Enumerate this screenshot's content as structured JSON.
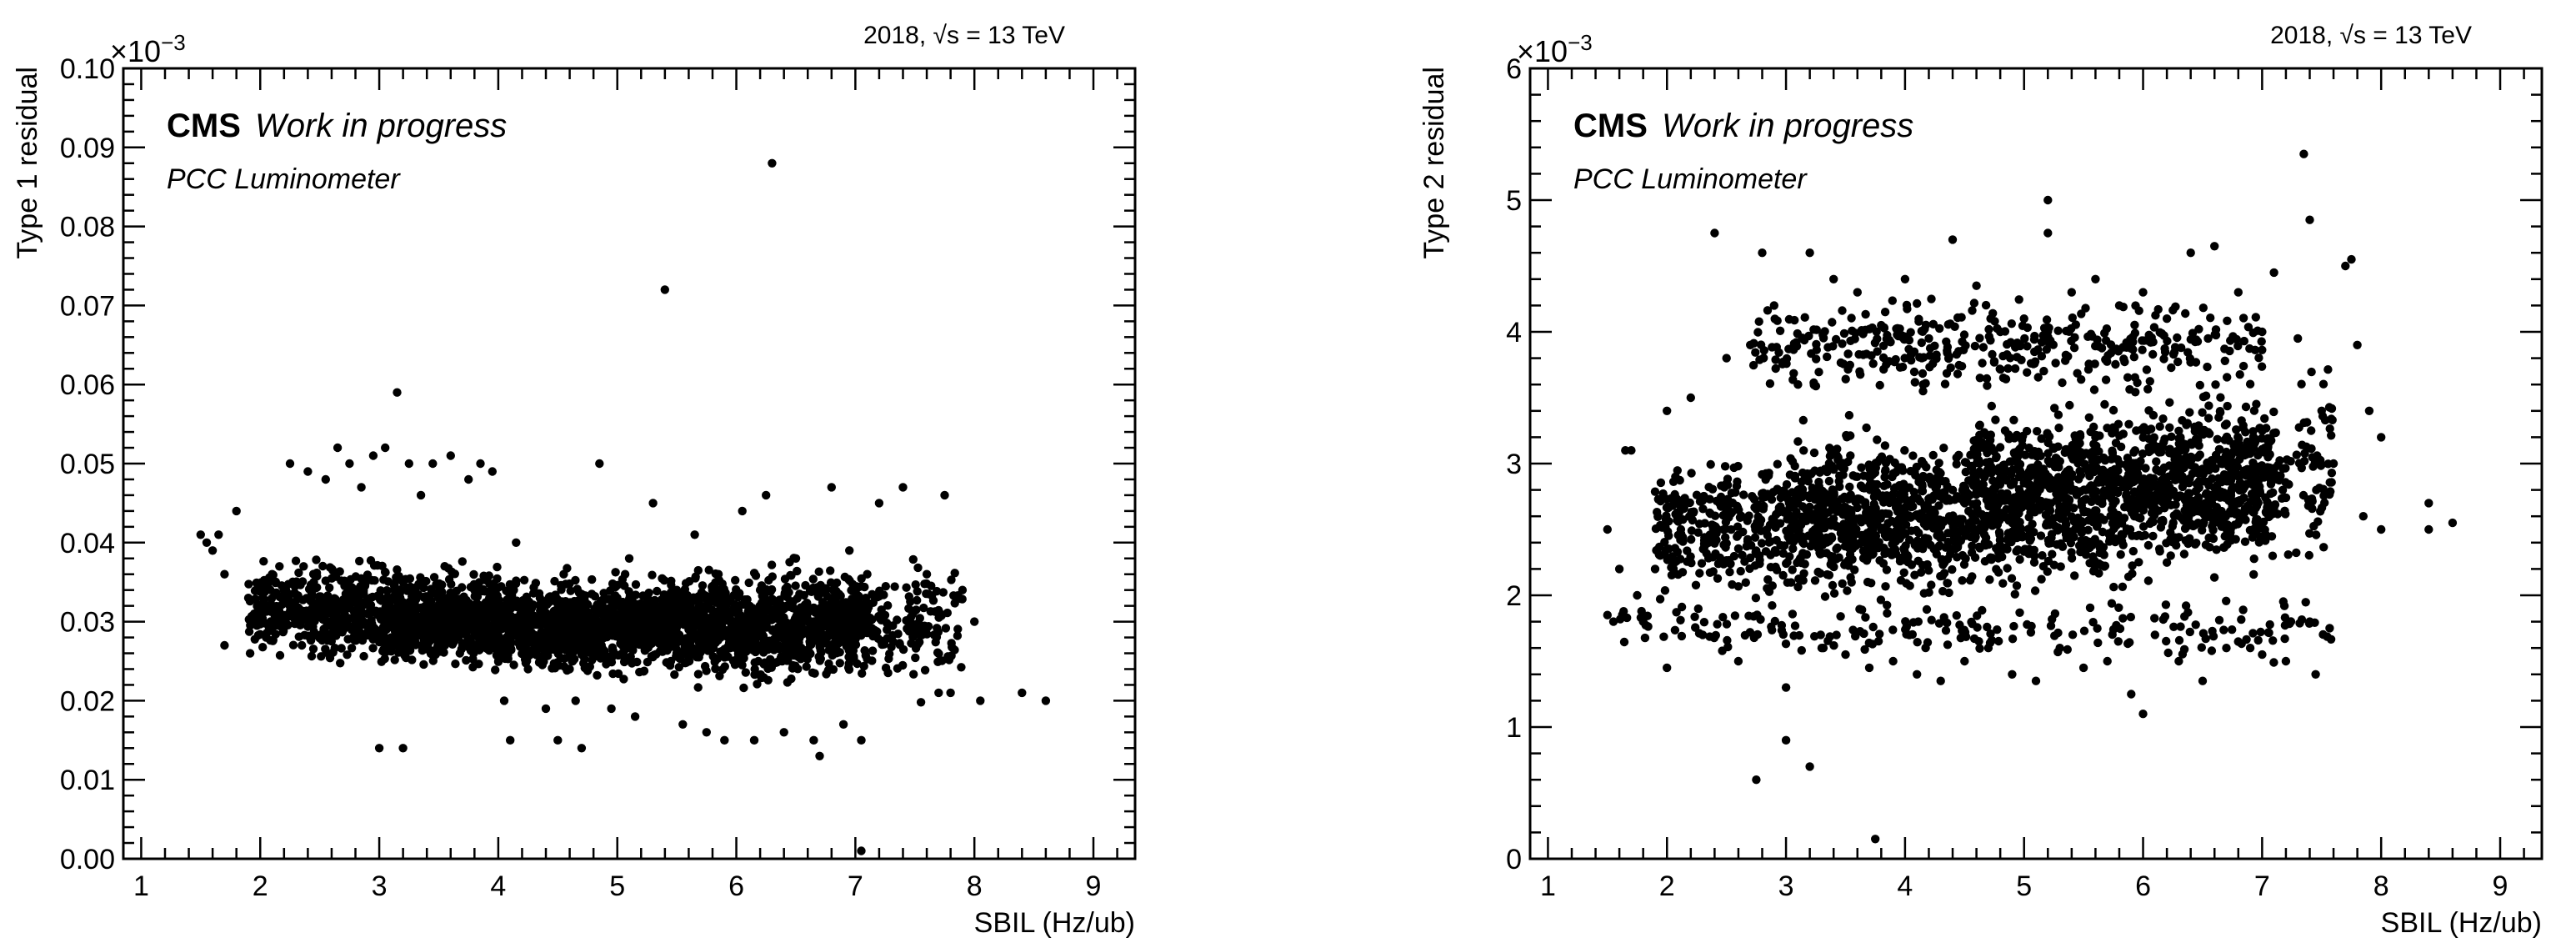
{
  "chart_data": [
    {
      "type": "scatter",
      "ylabel": "Type 1 residual",
      "xlabel": "SBIL (Hz/ub)",
      "exponent_label": "×10",
      "exponent_power": "−3",
      "energy_label": "2018,  √s = 13 TeV",
      "cms_label": "CMS",
      "wip_label": "Work in progress",
      "detector_label": "PCC Luminometer",
      "xlim": [
        0.85,
        9.35
      ],
      "ylim": [
        0.0,
        0.1
      ],
      "x_ticks": [
        1,
        2,
        3,
        4,
        5,
        6,
        7,
        8,
        9
      ],
      "x_tick_labels": [
        "1",
        "2",
        "3",
        "4",
        "5",
        "6",
        "7",
        "8",
        "9"
      ],
      "y_ticks": [
        0.0,
        0.01,
        0.02,
        0.03,
        0.04,
        0.05,
        0.06,
        0.07,
        0.08,
        0.09,
        0.1
      ],
      "y_tick_labels": [
        "0.00",
        "0.01",
        "0.02",
        "0.03",
        "0.04",
        "0.05",
        "0.06",
        "0.07",
        "0.08",
        "0.09",
        "0.10"
      ],
      "grid": false,
      "marker_color": "#000000",
      "points": [
        [
          1.5,
          0.041
        ],
        [
          1.55,
          0.04
        ],
        [
          1.6,
          0.039
        ],
        [
          1.65,
          0.041
        ],
        [
          1.7,
          0.036
        ],
        [
          1.7,
          0.027
        ],
        [
          1.8,
          0.044
        ],
        [
          1.9,
          0.033
        ],
        [
          1.95,
          0.031
        ],
        [
          2.05,
          0.028
        ],
        [
          2.1,
          0.036
        ],
        [
          2.15,
          0.03
        ],
        [
          2.2,
          0.034
        ],
        [
          2.25,
          0.05
        ],
        [
          2.3,
          0.03
        ],
        [
          2.35,
          0.027
        ],
        [
          2.4,
          0.049
        ],
        [
          2.45,
          0.035
        ],
        [
          2.5,
          0.033
        ],
        [
          2.55,
          0.048
        ],
        [
          2.6,
          0.031
        ],
        [
          2.65,
          0.052
        ],
        [
          2.7,
          0.029
        ],
        [
          2.75,
          0.05
        ],
        [
          2.8,
          0.034
        ],
        [
          2.85,
          0.047
        ],
        [
          2.9,
          0.031
        ],
        [
          2.95,
          0.051
        ],
        [
          3.0,
          0.014
        ],
        [
          3.0,
          0.033
        ],
        [
          3.05,
          0.052
        ],
        [
          3.1,
          0.028
        ],
        [
          3.15,
          0.059
        ],
        [
          3.2,
          0.014
        ],
        [
          3.2,
          0.035
        ],
        [
          3.25,
          0.05
        ],
        [
          3.3,
          0.031
        ],
        [
          3.35,
          0.046
        ],
        [
          3.4,
          0.029
        ],
        [
          3.45,
          0.05
        ],
        [
          3.5,
          0.033
        ],
        [
          3.55,
          0.037
        ],
        [
          3.6,
          0.051
        ],
        [
          3.65,
          0.03
        ],
        [
          3.7,
          0.027
        ],
        [
          3.75,
          0.048
        ],
        [
          3.8,
          0.034
        ],
        [
          3.85,
          0.05
        ],
        [
          3.9,
          0.028
        ],
        [
          3.95,
          0.049
        ],
        [
          4.0,
          0.031
        ],
        [
          4.05,
          0.02
        ],
        [
          4.1,
          0.015
        ],
        [
          4.15,
          0.04
        ],
        [
          4.2,
          0.03
        ],
        [
          4.25,
          0.024
        ],
        [
          4.3,
          0.026
        ],
        [
          4.35,
          0.033
        ],
        [
          4.4,
          0.019
        ],
        [
          4.45,
          0.028
        ],
        [
          4.5,
          0.015
        ],
        [
          4.55,
          0.036
        ],
        [
          4.6,
          0.029
        ],
        [
          4.65,
          0.02
        ],
        [
          4.7,
          0.014
        ],
        [
          4.75,
          0.031
        ],
        [
          4.8,
          0.027
        ],
        [
          4.85,
          0.05
        ],
        [
          4.9,
          0.029
        ],
        [
          4.95,
          0.019
        ],
        [
          5.0,
          0.033
        ],
        [
          5.05,
          0.026
        ],
        [
          5.1,
          0.038
        ],
        [
          5.15,
          0.018
        ],
        [
          5.2,
          0.031
        ],
        [
          5.25,
          0.028
        ],
        [
          5.3,
          0.045
        ],
        [
          5.35,
          0.03
        ],
        [
          5.4,
          0.072
        ],
        [
          5.45,
          0.025
        ],
        [
          5.5,
          0.034
        ],
        [
          5.55,
          0.017
        ],
        [
          5.6,
          0.029
        ],
        [
          5.65,
          0.041
        ],
        [
          5.7,
          0.032
        ],
        [
          5.75,
          0.016
        ],
        [
          5.8,
          0.028
        ],
        [
          5.85,
          0.036
        ],
        [
          5.9,
          0.015
        ],
        [
          5.95,
          0.031
        ],
        [
          6.0,
          0.027
        ],
        [
          6.05,
          0.044
        ],
        [
          6.1,
          0.03
        ],
        [
          6.15,
          0.015
        ],
        [
          6.2,
          0.034
        ],
        [
          6.25,
          0.046
        ],
        [
          6.3,
          0.088
        ],
        [
          6.35,
          0.028
        ],
        [
          6.4,
          0.016
        ],
        [
          6.45,
          0.032
        ],
        [
          6.5,
          0.038
        ],
        [
          6.55,
          0.026
        ],
        [
          6.6,
          0.029
        ],
        [
          6.65,
          0.015
        ],
        [
          6.7,
          0.013
        ],
        [
          6.75,
          0.034
        ],
        [
          6.8,
          0.047
        ],
        [
          6.85,
          0.029
        ],
        [
          6.9,
          0.017
        ],
        [
          6.95,
          0.039
        ],
        [
          7.0,
          0.031
        ],
        [
          7.05,
          0.015
        ],
        [
          7.05,
          0.001
        ],
        [
          7.1,
          0.036
        ],
        [
          7.2,
          0.045
        ],
        [
          7.3,
          0.028
        ],
        [
          7.4,
          0.047
        ],
        [
          7.5,
          0.029
        ],
        [
          7.6,
          0.036
        ],
        [
          7.7,
          0.021
        ],
        [
          7.75,
          0.046
        ],
        [
          7.8,
          0.021
        ],
        [
          7.9,
          0.034
        ],
        [
          8.0,
          0.03
        ],
        [
          8.05,
          0.02
        ],
        [
          8.4,
          0.021
        ],
        [
          8.6,
          0.02
        ]
      ],
      "dense_band": [
        {
          "x": [
            1.9,
            3.0
          ],
          "y": [
            0.024,
            0.039
          ],
          "n": 380
        },
        {
          "x": [
            3.0,
            4.0
          ],
          "y": [
            0.024,
            0.037
          ],
          "n": 700
        },
        {
          "x": [
            4.0,
            5.5
          ],
          "y": [
            0.023,
            0.036
          ],
          "n": 1000
        },
        {
          "x": [
            5.5,
            7.1
          ],
          "y": [
            0.022,
            0.037
          ],
          "n": 900
        },
        {
          "x": [
            7.1,
            7.9
          ],
          "y": [
            0.021,
            0.038
          ],
          "n": 140
        }
      ]
    },
    {
      "type": "scatter",
      "ylabel": "Type 2 residual",
      "xlabel": "SBIL (Hz/ub)",
      "exponent_label": "×10",
      "exponent_power": "−3",
      "energy_label": "2018,  √s = 13 TeV",
      "cms_label": "CMS",
      "wip_label": "Work in progress",
      "detector_label": "PCC Luminometer",
      "xlim": [
        0.85,
        9.35
      ],
      "ylim": [
        0,
        6
      ],
      "x_ticks": [
        1,
        2,
        3,
        4,
        5,
        6,
        7,
        8,
        9
      ],
      "x_tick_labels": [
        "1",
        "2",
        "3",
        "4",
        "5",
        "6",
        "7",
        "8",
        "9"
      ],
      "y_ticks": [
        0,
        1,
        2,
        3,
        4,
        5,
        6
      ],
      "y_tick_labels": [
        "0",
        "1",
        "2",
        "3",
        "4",
        "5",
        "6"
      ],
      "grid": false,
      "marker_color": "#000000",
      "points": [
        [
          1.5,
          2.5
        ],
        [
          1.5,
          1.85
        ],
        [
          1.55,
          1.8
        ],
        [
          1.6,
          2.2
        ],
        [
          1.65,
          3.1
        ],
        [
          1.7,
          3.1
        ],
        [
          1.75,
          2.0
        ],
        [
          1.8,
          1.8
        ],
        [
          1.9,
          2.2
        ],
        [
          2.0,
          3.4
        ],
        [
          2.0,
          1.45
        ],
        [
          2.1,
          2.7
        ],
        [
          2.2,
          3.5
        ],
        [
          2.3,
          1.7
        ],
        [
          2.4,
          4.75
        ],
        [
          2.5,
          3.8
        ],
        [
          2.6,
          1.5
        ],
        [
          2.7,
          3.9
        ],
        [
          2.75,
          0.6
        ],
        [
          2.8,
          4.6
        ],
        [
          2.9,
          4.2
        ],
        [
          3.0,
          0.9
        ],
        [
          3.0,
          1.3
        ],
        [
          3.1,
          3.6
        ],
        [
          3.2,
          0.7
        ],
        [
          3.2,
          4.6
        ],
        [
          3.3,
          1.6
        ],
        [
          3.4,
          4.4
        ],
        [
          3.5,
          1.55
        ],
        [
          3.6,
          4.3
        ],
        [
          3.7,
          1.45
        ],
        [
          3.75,
          0.15
        ],
        [
          3.8,
          4.05
        ],
        [
          3.9,
          1.5
        ],
        [
          4.0,
          4.4
        ],
        [
          4.1,
          1.4
        ],
        [
          4.2,
          3.95
        ],
        [
          4.3,
          1.35
        ],
        [
          4.4,
          4.7
        ],
        [
          4.5,
          1.5
        ],
        [
          4.6,
          4.35
        ],
        [
          4.7,
          1.6
        ],
        [
          4.8,
          4.0
        ],
        [
          4.9,
          1.4
        ],
        [
          5.0,
          4.1
        ],
        [
          5.1,
          1.35
        ],
        [
          5.2,
          5.0
        ],
        [
          5.2,
          4.75
        ],
        [
          5.3,
          1.6
        ],
        [
          5.4,
          4.3
        ],
        [
          5.5,
          1.45
        ],
        [
          5.6,
          4.4
        ],
        [
          5.7,
          1.5
        ],
        [
          5.8,
          4.2
        ],
        [
          5.9,
          1.25
        ],
        [
          6.0,
          1.1
        ],
        [
          6.0,
          4.3
        ],
        [
          6.1,
          1.7
        ],
        [
          6.2,
          4.1
        ],
        [
          6.3,
          1.5
        ],
        [
          6.4,
          4.6
        ],
        [
          6.5,
          1.35
        ],
        [
          6.6,
          4.65
        ],
        [
          6.7,
          1.6
        ],
        [
          6.8,
          4.3
        ],
        [
          6.9,
          1.6
        ],
        [
          7.0,
          1.55
        ],
        [
          7.0,
          4.0
        ],
        [
          7.1,
          4.45
        ],
        [
          7.2,
          1.5
        ],
        [
          7.3,
          3.95
        ],
        [
          7.35,
          5.35
        ],
        [
          7.4,
          4.85
        ],
        [
          7.4,
          1.8
        ],
        [
          7.45,
          1.4
        ],
        [
          7.5,
          3.4
        ],
        [
          7.6,
          3.0
        ],
        [
          7.7,
          4.5
        ],
        [
          7.75,
          4.55
        ],
        [
          7.8,
          3.9
        ],
        [
          7.85,
          2.6
        ],
        [
          7.9,
          3.4
        ],
        [
          8.0,
          3.2
        ],
        [
          8.0,
          2.5
        ],
        [
          8.4,
          2.7
        ],
        [
          8.4,
          2.5
        ],
        [
          8.6,
          2.55
        ]
      ],
      "dense_band": [
        {
          "x": [
            1.9,
            3.0
          ],
          "y": [
            1.9,
            3.1
          ],
          "n": 280
        },
        {
          "x": [
            3.0,
            4.5
          ],
          "y": [
            1.9,
            3.3
          ],
          "n": 700
        },
        {
          "x": [
            4.5,
            6.0
          ],
          "y": [
            2.0,
            3.5
          ],
          "n": 800
        },
        {
          "x": [
            6.0,
            7.1
          ],
          "y": [
            2.1,
            3.6
          ],
          "n": 550
        },
        {
          "x": [
            2.7,
            7.0
          ],
          "y": [
            3.5,
            4.3
          ],
          "n": 380
        },
        {
          "x": [
            1.6,
            7.6
          ],
          "y": [
            1.5,
            2.0
          ],
          "n": 200
        },
        {
          "x": [
            7.1,
            7.6
          ],
          "y": [
            2.2,
            3.7
          ],
          "n": 80
        }
      ]
    }
  ]
}
